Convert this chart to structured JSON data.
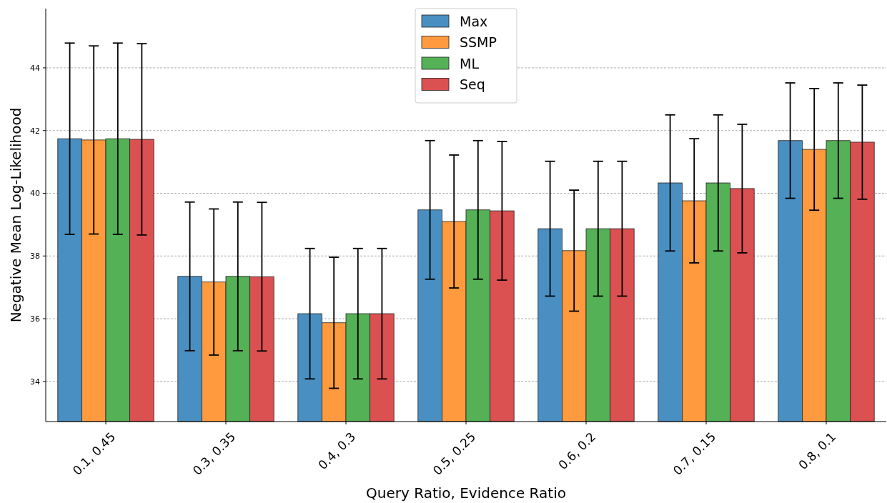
{
  "chart_data": {
    "type": "bar",
    "xlabel": "Query Ratio, Evidence Ratio",
    "ylabel": "Negative Mean Log-Likelihood",
    "categories": [
      "0.1, 0.45",
      "0.3, 0.35",
      "0.4, 0.3",
      "0.5, 0.25",
      "0.6, 0.2",
      "0.7, 0.15",
      "0.8, 0.1"
    ],
    "series": [
      {
        "name": "Max",
        "color": "#4a8fc1",
        "values": [
          41.74,
          37.35,
          36.16,
          39.47,
          38.87,
          40.33,
          41.68
        ],
        "errors": [
          3.05,
          2.37,
          2.08,
          2.21,
          2.15,
          2.17,
          1.84
        ]
      },
      {
        "name": "SSMP",
        "color": "#ff9a3f",
        "values": [
          41.7,
          37.17,
          35.87,
          39.1,
          38.17,
          39.76,
          41.4
        ],
        "errors": [
          3.0,
          2.33,
          2.09,
          2.12,
          1.93,
          1.98,
          1.94
        ]
      },
      {
        "name": "ML",
        "color": "#55b155",
        "values": [
          41.74,
          37.35,
          36.16,
          39.47,
          38.87,
          40.33,
          41.68
        ],
        "errors": [
          3.05,
          2.37,
          2.08,
          2.21,
          2.15,
          2.17,
          1.84
        ]
      },
      {
        "name": "Seq",
        "color": "#db5050",
        "values": [
          41.72,
          37.34,
          36.16,
          39.44,
          38.87,
          40.15,
          41.63
        ],
        "errors": [
          3.05,
          2.37,
          2.08,
          2.21,
          2.15,
          2.05,
          1.82
        ]
      }
    ],
    "ylim": [
      32.72,
      45.89
    ],
    "yticks": [
      34,
      36,
      38,
      40,
      42,
      44
    ],
    "grid": "y",
    "legend": "top"
  }
}
